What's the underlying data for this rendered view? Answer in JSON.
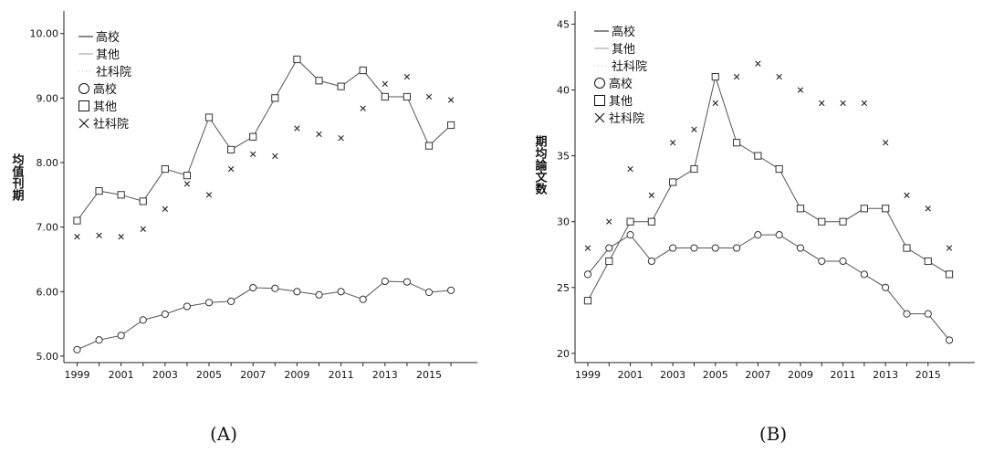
{
  "chart_data": [
    {
      "type": "line",
      "panel_label": "(A)",
      "ylabel": "均值刊期",
      "x": [
        1999,
        2000,
        2001,
        2002,
        2003,
        2004,
        2005,
        2006,
        2007,
        2008,
        2009,
        2010,
        2011,
        2012,
        2013,
        2014,
        2015,
        2016
      ],
      "xticks": [
        "1999",
        "2001",
        "2003",
        "2005",
        "2007",
        "2009",
        "2011",
        "2013",
        "2015"
      ],
      "xlim": [
        1998.4,
        2017.2
      ],
      "yticks": [
        "5.00",
        "6.00",
        "7.00",
        "8.00",
        "9.00",
        "10.00"
      ],
      "ylim": [
        4.9,
        10.35
      ],
      "series": [
        {
          "name": "高校",
          "marker": "circle",
          "style": "line",
          "values": [
            5.1,
            5.25,
            5.32,
            5.56,
            5.65,
            5.77,
            5.83,
            5.85,
            6.06,
            6.05,
            6.0,
            5.95,
            6.0,
            5.88,
            6.16,
            6.15,
            5.99,
            6.02
          ]
        },
        {
          "name": "其他",
          "marker": "square",
          "style": "line",
          "values": [
            7.1,
            7.56,
            7.5,
            7.4,
            7.9,
            7.8,
            8.7,
            8.2,
            8.4,
            9.0,
            9.6,
            9.27,
            9.18,
            9.43,
            9.02,
            9.02,
            8.26,
            8.58
          ]
        },
        {
          "name": "社科院",
          "marker": "x",
          "style": "dotted",
          "values": [
            6.85,
            6.87,
            6.85,
            6.97,
            7.28,
            7.67,
            7.5,
            7.9,
            8.13,
            8.1,
            8.53,
            8.44,
            8.38,
            8.84,
            9.22,
            9.33,
            9.02,
            8.97
          ]
        }
      ],
      "legend": {
        "placement": "top-left",
        "line_entries": [
          "高校",
          "其他",
          "社科院"
        ],
        "marker_entries": [
          "高校",
          "其他",
          "社科院"
        ]
      }
    },
    {
      "type": "line",
      "panel_label": "(B)",
      "ylabel": "期均論文数",
      "x": [
        1999,
        2000,
        2001,
        2002,
        2003,
        2004,
        2005,
        2006,
        2007,
        2008,
        2009,
        2010,
        2011,
        2012,
        2013,
        2014,
        2015,
        2016
      ],
      "xticks": [
        "1999",
        "2001",
        "2003",
        "2005",
        "2007",
        "2009",
        "2011",
        "2013",
        "2015"
      ],
      "xlim": [
        1998.4,
        2017.2
      ],
      "yticks": [
        "20",
        "25",
        "30",
        "35",
        "40",
        "45"
      ],
      "ylim": [
        19.3,
        46
      ],
      "series": [
        {
          "name": "高校",
          "marker": "circle",
          "style": "line",
          "values": [
            26,
            28,
            29,
            27,
            28,
            28,
            28,
            28,
            29,
            29,
            28,
            27,
            27,
            26,
            25,
            23,
            23,
            21
          ]
        },
        {
          "name": "其他",
          "marker": "square",
          "style": "line",
          "values": [
            24,
            27,
            30,
            30,
            33,
            34,
            41,
            36,
            35,
            34,
            31,
            30,
            30,
            31,
            31,
            28,
            27,
            26
          ]
        },
        {
          "name": "社科院",
          "marker": "x",
          "style": "dotted",
          "values": [
            28,
            30,
            34,
            32,
            36,
            37,
            39,
            41,
            42,
            41,
            40,
            39,
            39,
            39,
            36,
            32,
            31,
            28
          ]
        }
      ],
      "legend": {
        "placement": "top-left",
        "line_entries": [
          "高校",
          "其他",
          "社科院"
        ],
        "marker_entries": [
          "高校",
          "其他",
          "社科院"
        ]
      }
    }
  ]
}
